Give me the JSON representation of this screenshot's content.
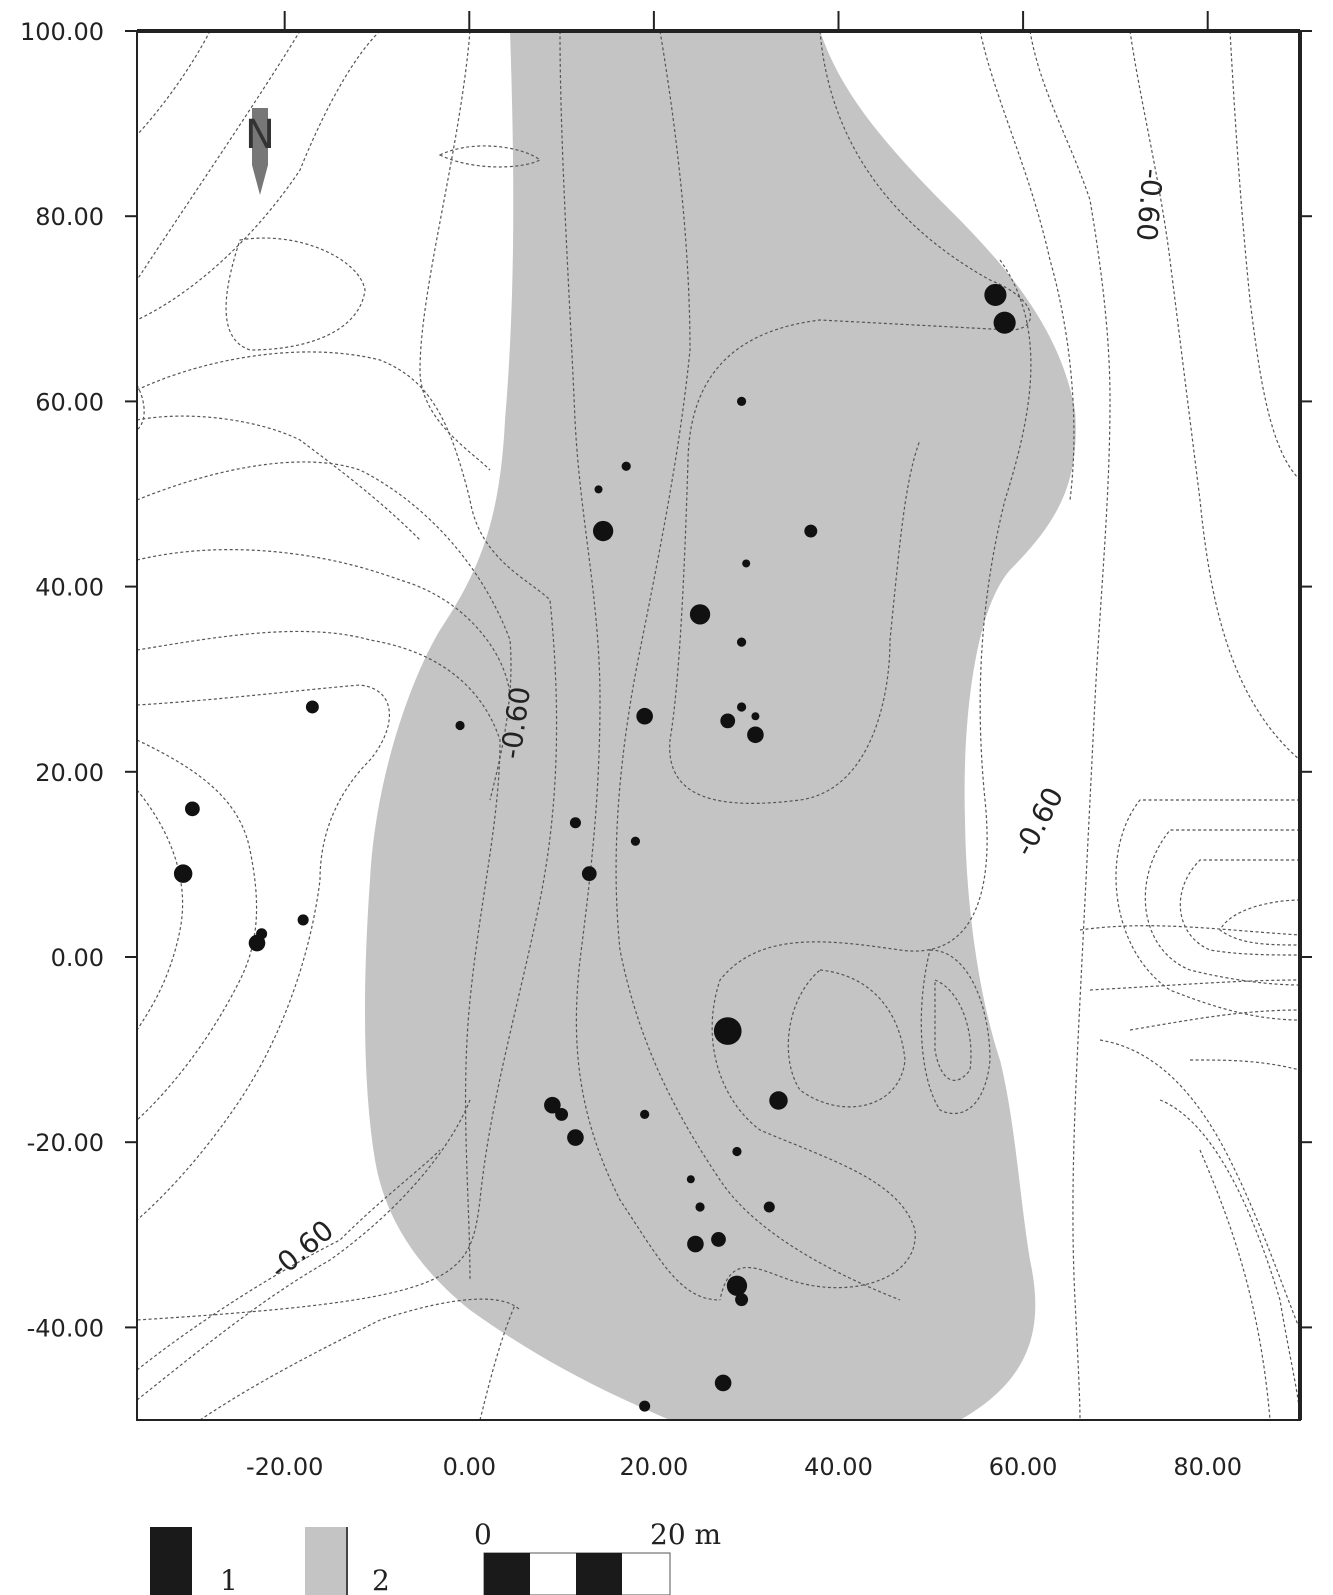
{
  "map": {
    "x_ticks": [
      "-20.00",
      "0.00",
      "20.00",
      "40.00",
      "60.00",
      "80.00"
    ],
    "y_ticks": [
      "100.00",
      "80.00",
      "60.00",
      "40.00",
      "20.00",
      "0.00",
      "-20.00",
      "-40.00"
    ],
    "x_range": [
      -36,
      90
    ],
    "y_range": [
      -50,
      100
    ],
    "north_label": "N",
    "contour_label": "-0.60",
    "colors": {
      "anomaly_zone": "#c4c4c4",
      "feature": "#111111",
      "contour": "#555555",
      "frame": "#222222"
    }
  },
  "features": [
    {
      "x": -31,
      "y": 9,
      "r": 1.0
    },
    {
      "x": -30,
      "y": 16,
      "r": 0.8
    },
    {
      "x": -23,
      "y": 1.5,
      "r": 0.9
    },
    {
      "x": -22.5,
      "y": 2.5,
      "r": 0.6
    },
    {
      "x": -18,
      "y": 4,
      "r": 0.6
    },
    {
      "x": -17,
      "y": 27,
      "r": 0.7
    },
    {
      "x": -1,
      "y": 25,
      "r": 0.5
    },
    {
      "x": 14.5,
      "y": 46,
      "r": 1.1
    },
    {
      "x": 14,
      "y": 50.5,
      "r": 0.4
    },
    {
      "x": 17,
      "y": 53,
      "r": 0.5
    },
    {
      "x": 19,
      "y": 26,
      "r": 0.9
    },
    {
      "x": 18,
      "y": 12.5,
      "r": 0.5
    },
    {
      "x": 11.5,
      "y": 14.5,
      "r": 0.6
    },
    {
      "x": 13,
      "y": 9,
      "r": 0.8
    },
    {
      "x": 25,
      "y": 37,
      "r": 1.1
    },
    {
      "x": 29.5,
      "y": 34,
      "r": 0.5
    },
    {
      "x": 30,
      "y": 42.5,
      "r": 0.4
    },
    {
      "x": 29.5,
      "y": 60,
      "r": 0.5
    },
    {
      "x": 37,
      "y": 46,
      "r": 0.7
    },
    {
      "x": 28,
      "y": 25.5,
      "r": 0.8
    },
    {
      "x": 29.5,
      "y": 27,
      "r": 0.5
    },
    {
      "x": 31,
      "y": 24,
      "r": 0.9
    },
    {
      "x": 31,
      "y": 26,
      "r": 0.4
    },
    {
      "x": 28,
      "y": -8,
      "r": 1.5
    },
    {
      "x": 33.5,
      "y": -15.5,
      "r": 1.0
    },
    {
      "x": 9,
      "y": -16,
      "r": 0.9
    },
    {
      "x": 10,
      "y": -17,
      "r": 0.7
    },
    {
      "x": 11.5,
      "y": -19.5,
      "r": 0.9
    },
    {
      "x": 19,
      "y": -17,
      "r": 0.5
    },
    {
      "x": 29,
      "y": -21,
      "r": 0.5
    },
    {
      "x": 24,
      "y": -24,
      "r": 0.4
    },
    {
      "x": 25,
      "y": -27,
      "r": 0.5
    },
    {
      "x": 32.5,
      "y": -27,
      "r": 0.6
    },
    {
      "x": 24.5,
      "y": -31,
      "r": 0.9
    },
    {
      "x": 27,
      "y": -30.5,
      "r": 0.8
    },
    {
      "x": 29,
      "y": -35.5,
      "r": 1.1
    },
    {
      "x": 29.5,
      "y": -37,
      "r": 0.7
    },
    {
      "x": 27.5,
      "y": -46,
      "r": 0.9
    },
    {
      "x": 19,
      "y": -48.5,
      "r": 0.6
    },
    {
      "x": 57,
      "y": 71.5,
      "r": 1.2
    },
    {
      "x": 58,
      "y": 68.5,
      "r": 1.2
    }
  ],
  "legend": {
    "items": [
      {
        "label": "1",
        "color": "#1a1a1a"
      },
      {
        "label": "2",
        "color": "#c4c4c4"
      }
    ],
    "scale_zero": "0",
    "scale_end": "20 m"
  }
}
